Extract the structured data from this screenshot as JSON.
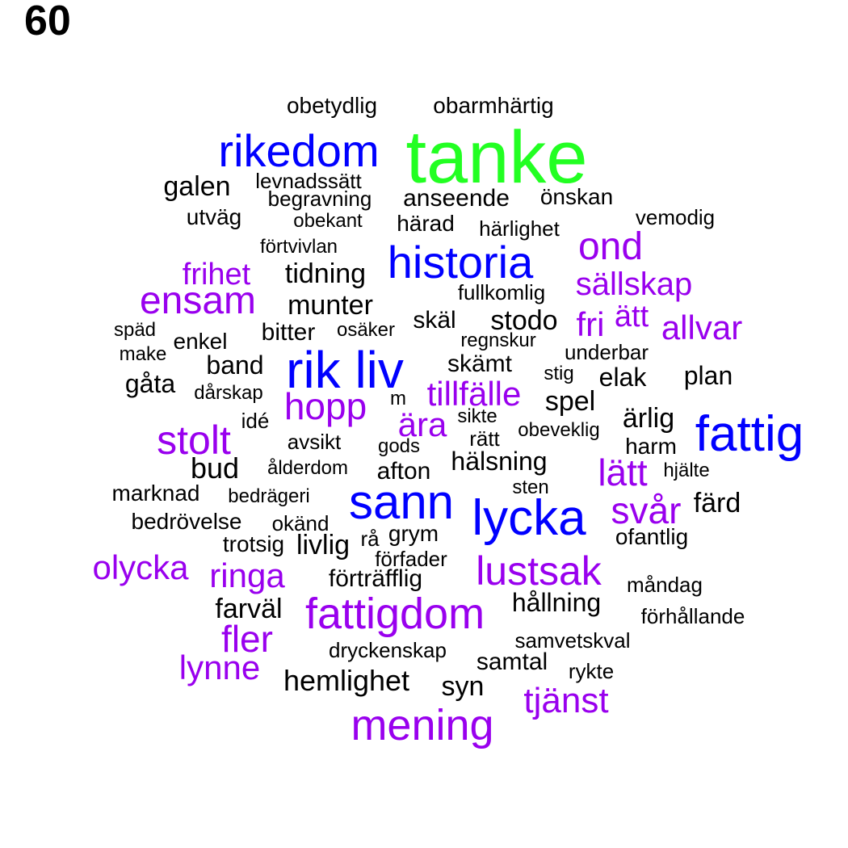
{
  "page_number": "60",
  "colors": {
    "tier_top": "#22ff22",
    "tier_high": "#0000ff",
    "tier_mid": "#9900ee",
    "tier_low": "#000000"
  },
  "words": [
    {
      "text": "tanke",
      "tier": "top"
    },
    {
      "text": "rikedom",
      "tier": "high"
    },
    {
      "text": "historia",
      "tier": "high"
    },
    {
      "text": "rik liv",
      "tier": "high"
    },
    {
      "text": "fattig",
      "tier": "high"
    },
    {
      "text": "sann",
      "tier": "high"
    },
    {
      "text": "lycka",
      "tier": "high"
    },
    {
      "text": "ond",
      "tier": "mid"
    },
    {
      "text": "sällskap",
      "tier": "mid"
    },
    {
      "text": "frihet",
      "tier": "mid"
    },
    {
      "text": "ensam",
      "tier": "mid"
    },
    {
      "text": "fri",
      "tier": "mid"
    },
    {
      "text": "ätt",
      "tier": "mid"
    },
    {
      "text": "allvar",
      "tier": "mid"
    },
    {
      "text": "hopp",
      "tier": "mid"
    },
    {
      "text": "tillfälle",
      "tier": "mid"
    },
    {
      "text": "ära",
      "tier": "mid"
    },
    {
      "text": "stolt",
      "tier": "mid"
    },
    {
      "text": "lätt",
      "tier": "mid"
    },
    {
      "text": "svår",
      "tier": "mid"
    },
    {
      "text": "olycka",
      "tier": "mid"
    },
    {
      "text": "ringa",
      "tier": "mid"
    },
    {
      "text": "lustsak",
      "tier": "mid"
    },
    {
      "text": "fattigdom",
      "tier": "mid"
    },
    {
      "text": "fler",
      "tier": "mid"
    },
    {
      "text": "lynne",
      "tier": "mid"
    },
    {
      "text": "tjänst",
      "tier": "mid"
    },
    {
      "text": "mening",
      "tier": "mid"
    },
    {
      "text": "obetydlig",
      "tier": "low"
    },
    {
      "text": "obarmhärtig",
      "tier": "low"
    },
    {
      "text": "galen",
      "tier": "low"
    },
    {
      "text": "levnadssätt",
      "tier": "low"
    },
    {
      "text": "begravning",
      "tier": "low"
    },
    {
      "text": "anseende",
      "tier": "low"
    },
    {
      "text": "önskan",
      "tier": "low"
    },
    {
      "text": "utväg",
      "tier": "low"
    },
    {
      "text": "obekant",
      "tier": "low"
    },
    {
      "text": "härad",
      "tier": "low"
    },
    {
      "text": "härlighet",
      "tier": "low"
    },
    {
      "text": "vemodig",
      "tier": "low"
    },
    {
      "text": "förtvivlan",
      "tier": "low"
    },
    {
      "text": "tidning",
      "tier": "low"
    },
    {
      "text": "fullkomlig",
      "tier": "low"
    },
    {
      "text": "munter",
      "tier": "low"
    },
    {
      "text": "skäl",
      "tier": "low"
    },
    {
      "text": "stodo",
      "tier": "low"
    },
    {
      "text": "späd",
      "tier": "low"
    },
    {
      "text": "bitter",
      "tier": "low"
    },
    {
      "text": "osäker",
      "tier": "low"
    },
    {
      "text": "regnskur",
      "tier": "low"
    },
    {
      "text": "enkel",
      "tier": "low"
    },
    {
      "text": "make",
      "tier": "low"
    },
    {
      "text": "underbar",
      "tier": "low"
    },
    {
      "text": "band",
      "tier": "low"
    },
    {
      "text": "skämt",
      "tier": "low"
    },
    {
      "text": "gåta",
      "tier": "low"
    },
    {
      "text": "stig",
      "tier": "low"
    },
    {
      "text": "elak",
      "tier": "low"
    },
    {
      "text": "plan",
      "tier": "low"
    },
    {
      "text": "dårskap",
      "tier": "low"
    },
    {
      "text": "m",
      "tier": "low"
    },
    {
      "text": "spel",
      "tier": "low"
    },
    {
      "text": "idé",
      "tier": "low"
    },
    {
      "text": "sikte",
      "tier": "low"
    },
    {
      "text": "obeveklig",
      "tier": "low"
    },
    {
      "text": "ärlig",
      "tier": "low"
    },
    {
      "text": "rätt",
      "tier": "low"
    },
    {
      "text": "avsikt",
      "tier": "low"
    },
    {
      "text": "gods",
      "tier": "low"
    },
    {
      "text": "harm",
      "tier": "low"
    },
    {
      "text": "bud",
      "tier": "low"
    },
    {
      "text": "hälsning",
      "tier": "low"
    },
    {
      "text": "ålderdom",
      "tier": "low"
    },
    {
      "text": "afton",
      "tier": "low"
    },
    {
      "text": "hjälte",
      "tier": "low"
    },
    {
      "text": "sten",
      "tier": "low"
    },
    {
      "text": "marknad",
      "tier": "low"
    },
    {
      "text": "bedrägeri",
      "tier": "low"
    },
    {
      "text": "färd",
      "tier": "low"
    },
    {
      "text": "bedrövelse",
      "tier": "low"
    },
    {
      "text": "okänd",
      "tier": "low"
    },
    {
      "text": "grym",
      "tier": "low"
    },
    {
      "text": "rå",
      "tier": "low"
    },
    {
      "text": "ofantlig",
      "tier": "low"
    },
    {
      "text": "trotsig",
      "tier": "low"
    },
    {
      "text": "livlig",
      "tier": "low"
    },
    {
      "text": "förfader",
      "tier": "low"
    },
    {
      "text": "förträfflig",
      "tier": "low"
    },
    {
      "text": "måndag",
      "tier": "low"
    },
    {
      "text": "hållning",
      "tier": "low"
    },
    {
      "text": "farväl",
      "tier": "low"
    },
    {
      "text": "förhållande",
      "tier": "low"
    },
    {
      "text": "samvetskval",
      "tier": "low"
    },
    {
      "text": "dryckenskap",
      "tier": "low"
    },
    {
      "text": "samtal",
      "tier": "low"
    },
    {
      "text": "rykte",
      "tier": "low"
    },
    {
      "text": "hemlighet",
      "tier": "low"
    },
    {
      "text": "syn",
      "tier": "low"
    }
  ]
}
